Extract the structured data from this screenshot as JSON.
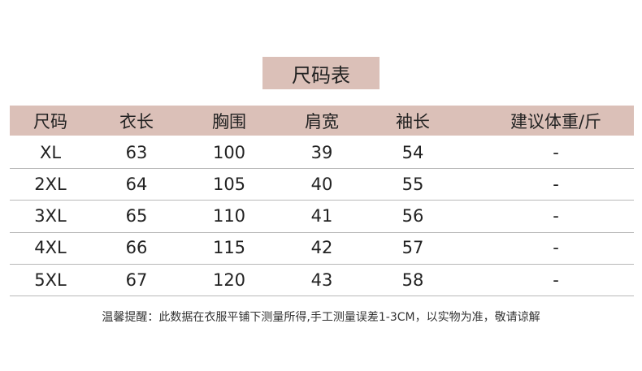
{
  "title": "尺码表",
  "headers": [
    "尺码",
    "衣长",
    "胸围",
    "肩宽",
    "袖长",
    "建议体重/斤"
  ],
  "rows": [
    [
      "XL",
      "63",
      "100",
      "39",
      "54",
      "-"
    ],
    [
      "2XL",
      "64",
      "105",
      "40",
      "55",
      "-"
    ],
    [
      "3XL",
      "65",
      "110",
      "41",
      "56",
      "-"
    ],
    [
      "4XL",
      "66",
      "115",
      "42",
      "57",
      "-"
    ],
    [
      "5XL",
      "67",
      "120",
      "43",
      "58",
      "-"
    ]
  ],
  "note": "温馨提醒：此数据在衣服平铺下测量所得,手工测量误差1-3CM，以实物为准，敬请谅解",
  "colors": {
    "band": "#dbc0b8",
    "divider": "#b8b8b8"
  }
}
